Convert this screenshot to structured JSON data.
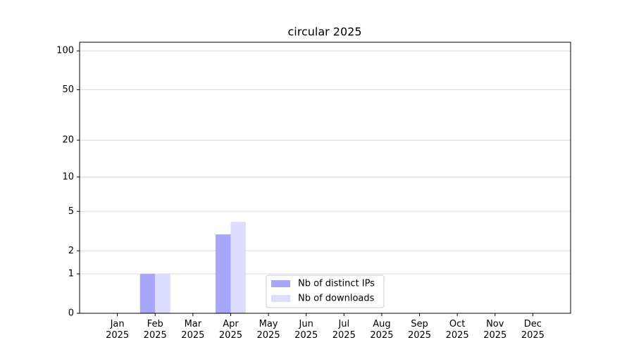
{
  "chart_data": {
    "type": "bar",
    "title": "circular 2025",
    "categories": [
      "Jan\n2025",
      "Feb\n2025",
      "Mar\n2025",
      "Apr\n2025",
      "May\n2025",
      "Jun\n2025",
      "Jul\n2025",
      "Aug\n2025",
      "Sep\n2025",
      "Oct\n2025",
      "Nov\n2025",
      "Dec\n2025"
    ],
    "series": [
      {
        "name": "Nb of distinct IPs",
        "color": "#a6a6fb",
        "values": [
          0,
          1,
          0,
          3,
          0,
          0,
          0,
          0,
          0,
          0,
          0,
          0
        ]
      },
      {
        "name": "Nb of downloads",
        "color": "#dcdcfc",
        "values": [
          0,
          1,
          0,
          4,
          0,
          0,
          0,
          0,
          0,
          0,
          0,
          0
        ]
      }
    ],
    "yscale": "log1p",
    "ylim": [
      0,
      116.5
    ],
    "yticks": [
      0,
      1,
      2,
      5,
      10,
      20,
      50,
      100
    ],
    "grid": true,
    "legend": "lower center"
  }
}
